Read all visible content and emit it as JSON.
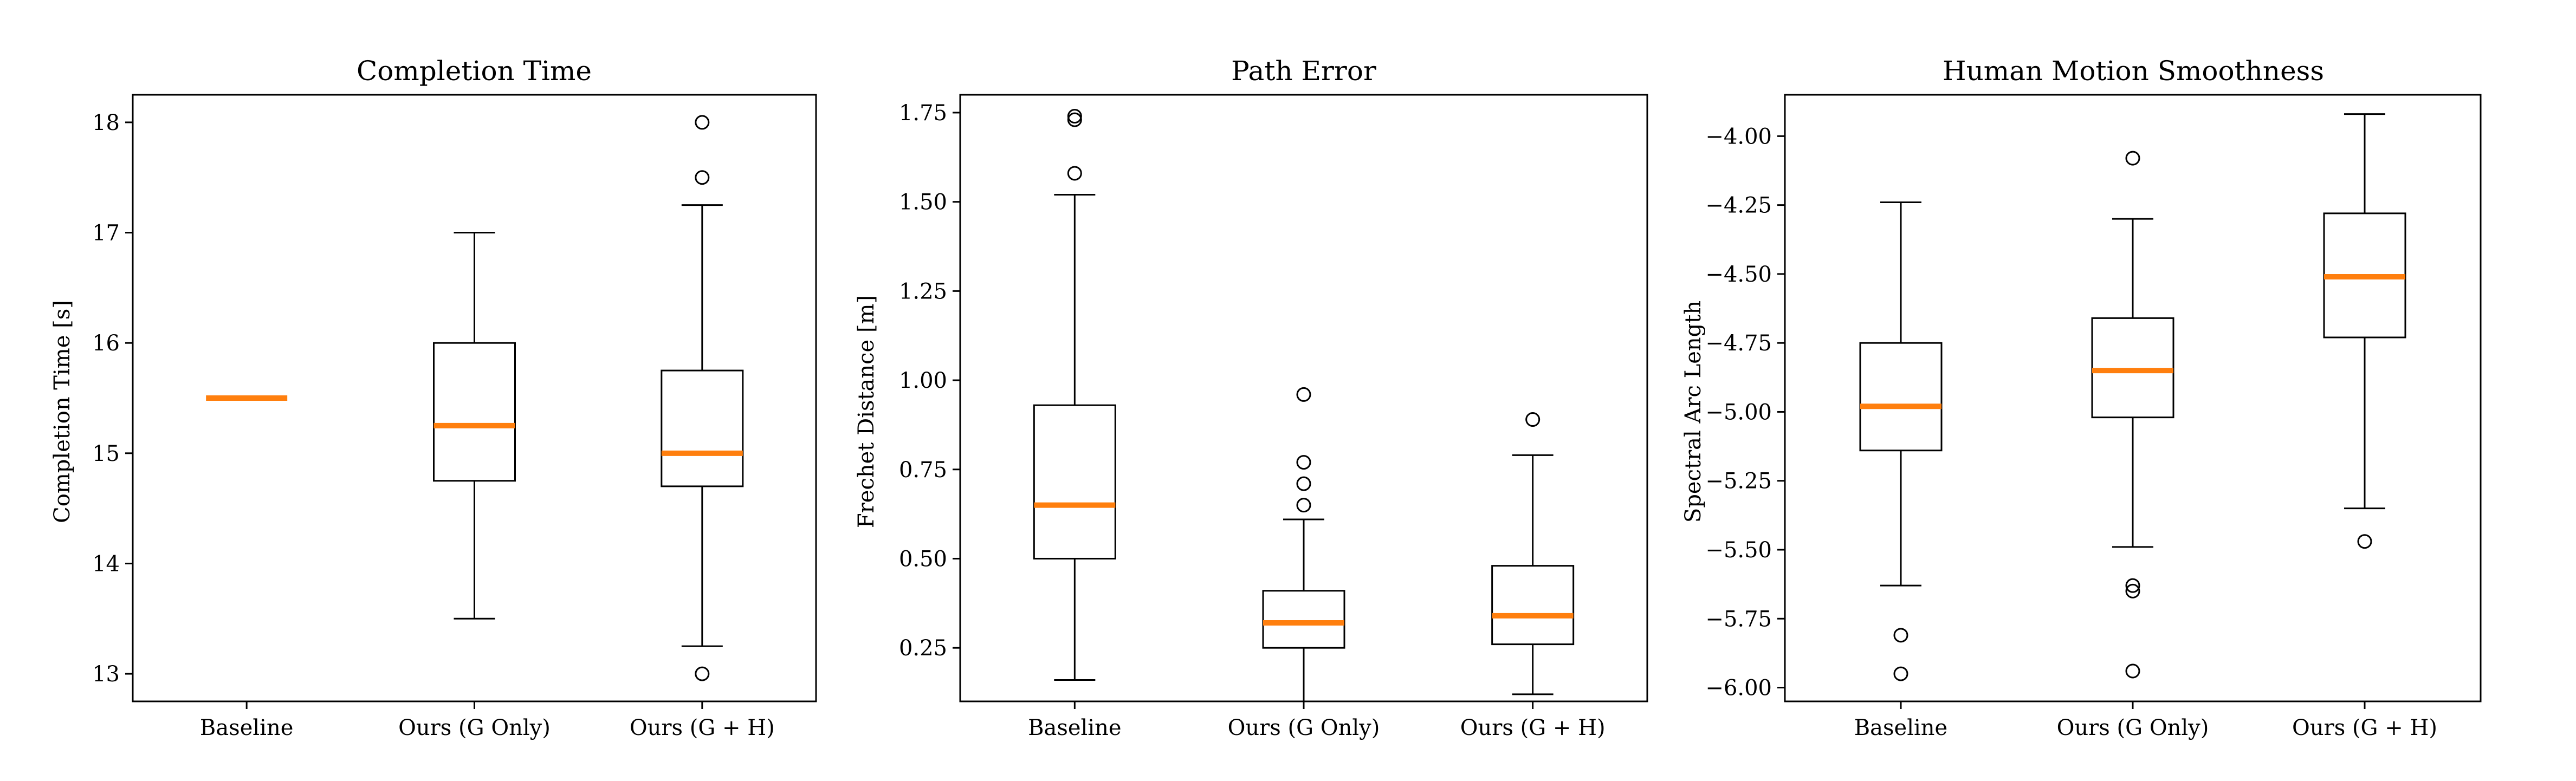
{
  "chart_data": [
    {
      "type": "box",
      "title": "Completion Time",
      "ylabel": "Completion Time [s]",
      "xlabel": "",
      "ylim": [
        12.75,
        18.25
      ],
      "yticks": [
        13,
        14,
        15,
        16,
        17,
        18
      ],
      "tick_format": "int",
      "categories": [
        "Baseline",
        "Ours (G Only)",
        "Ours (G + H)"
      ],
      "boxes": [
        {
          "q1": 15.5,
          "median": 15.5,
          "q3": 15.5,
          "whisker_low": 15.5,
          "whisker_high": 15.5,
          "outliers": []
        },
        {
          "q1": 14.75,
          "median": 15.25,
          "q3": 16.0,
          "whisker_low": 13.5,
          "whisker_high": 17.0,
          "outliers": []
        },
        {
          "q1": 14.7,
          "median": 15.0,
          "q3": 15.75,
          "whisker_low": 13.25,
          "whisker_high": 17.25,
          "outliers": [
            13.0,
            17.5,
            18.0
          ]
        }
      ]
    },
    {
      "type": "box",
      "title": "Path Error",
      "ylabel": "Frechet Distance [m]",
      "xlabel": "",
      "ylim": [
        0.1,
        1.8
      ],
      "yticks": [
        0.25,
        0.5,
        0.75,
        1.0,
        1.25,
        1.5,
        1.75
      ],
      "tick_format": "2",
      "categories": [
        "Baseline",
        "Ours (G Only)",
        "Ours (G + H)"
      ],
      "boxes": [
        {
          "q1": 0.5,
          "median": 0.65,
          "q3": 0.93,
          "whisker_low": 0.16,
          "whisker_high": 1.52,
          "outliers": [
            1.58,
            1.73,
            1.74
          ]
        },
        {
          "q1": 0.25,
          "median": 0.32,
          "q3": 0.41,
          "whisker_low": 0.1,
          "whisker_high": 0.61,
          "outliers": [
            0.65,
            0.71,
            0.77,
            0.96
          ]
        },
        {
          "q1": 0.26,
          "median": 0.34,
          "q3": 0.48,
          "whisker_low": 0.12,
          "whisker_high": 0.79,
          "outliers": [
            0.89
          ]
        }
      ]
    },
    {
      "type": "box",
      "title": "Human Motion Smoothness",
      "ylabel": "Spectral Arc Length",
      "xlabel": "",
      "ylim": [
        -6.05,
        -3.85
      ],
      "yticks": [
        -6.0,
        -5.75,
        -5.5,
        -5.25,
        -5.0,
        -4.75,
        -4.5,
        -4.25,
        -4.0
      ],
      "tick_format": "2",
      "categories": [
        "Baseline",
        "Ours (G Only)",
        "Ours (G + H)"
      ],
      "boxes": [
        {
          "q1": -5.14,
          "median": -4.98,
          "q3": -4.75,
          "whisker_low": -5.63,
          "whisker_high": -4.24,
          "outliers": [
            -5.81,
            -5.95
          ]
        },
        {
          "q1": -5.02,
          "median": -4.85,
          "q3": -4.66,
          "whisker_low": -5.49,
          "whisker_high": -4.3,
          "outliers": [
            -4.08,
            -5.63,
            -5.65,
            -5.94
          ]
        },
        {
          "q1": -4.73,
          "median": -4.51,
          "q3": -4.28,
          "whisker_low": -5.35,
          "whisker_high": -3.92,
          "outliers": [
            -5.47
          ]
        }
      ]
    }
  ],
  "colors": {
    "median": "#ff7f0e",
    "box": "#000000",
    "background": "#ffffff"
  }
}
